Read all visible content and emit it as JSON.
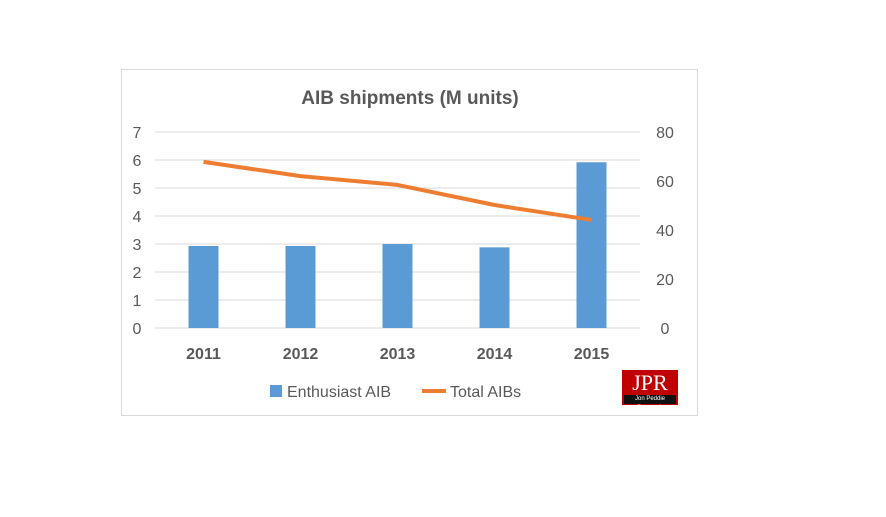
{
  "chart_data": {
    "type": "bar",
    "title": "AIB shipments (M units)",
    "categories": [
      "2011",
      "2012",
      "2013",
      "2014",
      "2015"
    ],
    "series": [
      {
        "name": "Enthusiast AIB",
        "type": "bar",
        "axis": "left",
        "color": "#5b9bd5",
        "values": [
          2.93,
          2.93,
          3.0,
          2.88,
          5.92
        ]
      },
      {
        "name": "Total AIBs",
        "type": "line",
        "axis": "right",
        "color": "#ed7d31",
        "values": [
          67.8,
          62.0,
          58.4,
          50.2,
          44.1
        ]
      }
    ],
    "y_left": {
      "range": [
        0,
        7
      ],
      "ticks": [
        0,
        1,
        2,
        3,
        4,
        5,
        6,
        7
      ]
    },
    "y_right": {
      "range": [
        0,
        80
      ],
      "ticks": [
        0,
        20,
        40,
        60,
        80
      ]
    },
    "grid": true,
    "legend": "bottom"
  },
  "logo": {
    "text": "JPR",
    "subtext": "Jon Peddie Research"
  }
}
